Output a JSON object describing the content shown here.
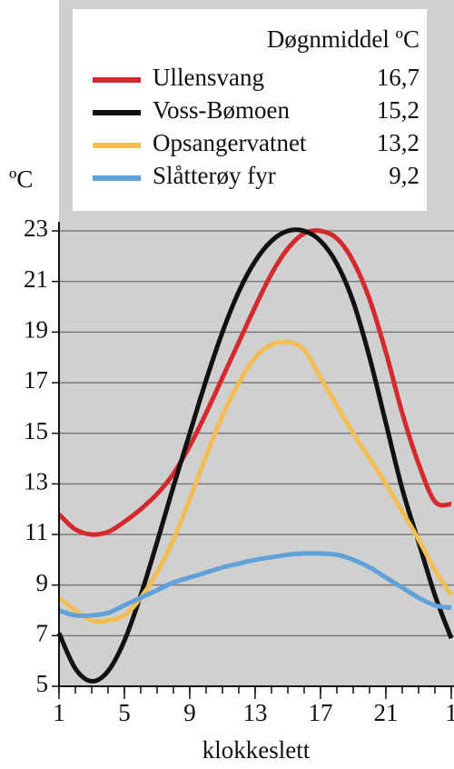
{
  "chart_data": {
    "type": "line",
    "y_label": "ºC",
    "x_label": "klokkeslett",
    "legend_title": "Døgnmiddel ºC",
    "x": [
      1,
      2,
      3,
      4,
      5,
      6,
      7,
      8,
      9,
      10,
      11,
      12,
      13,
      14,
      15,
      16,
      17,
      18,
      19,
      20,
      21,
      22,
      23,
      24,
      25
    ],
    "xlim": [
      1,
      25
    ],
    "xticks": [
      1,
      5,
      9,
      13,
      17,
      21,
      {
        "value": 25,
        "label": "1"
      }
    ],
    "ylim": [
      5,
      23
    ],
    "yticks": [
      5,
      7,
      9,
      11,
      13,
      15,
      17,
      19,
      21,
      23
    ],
    "grid": true,
    "series": [
      {
        "name": "Ullensvang",
        "mean": {
          "value": 16.7,
          "label": "16,7"
        },
        "color": "#d42a2e",
        "values": [
          11.8,
          11.2,
          11.0,
          11.1,
          11.5,
          12.0,
          12.6,
          13.4,
          14.5,
          15.8,
          17.2,
          18.6,
          20.0,
          21.3,
          22.3,
          22.9,
          23.0,
          22.7,
          21.8,
          20.3,
          18.2,
          15.8,
          13.8,
          12.3,
          12.2
        ]
      },
      {
        "name": "Voss-Bømoen",
        "mean": {
          "value": 15.2,
          "label": "15,2"
        },
        "color": "#111111",
        "values": [
          7.1,
          5.7,
          5.2,
          5.6,
          6.8,
          8.6,
          10.7,
          12.9,
          15.0,
          17.1,
          19.0,
          20.6,
          21.8,
          22.6,
          23.0,
          23.0,
          22.6,
          21.7,
          20.2,
          18.0,
          15.4,
          12.8,
          10.7,
          8.6,
          6.9
        ]
      },
      {
        "name": "Opsangervatnet",
        "mean": {
          "value": 13.2,
          "label": "13,2"
        },
        "color": "#f2bd55",
        "values": [
          8.5,
          8.0,
          7.6,
          7.6,
          7.8,
          8.5,
          9.5,
          10.8,
          12.4,
          14.1,
          15.7,
          17.0,
          18.0,
          18.5,
          18.6,
          18.3,
          17.2,
          16.1,
          15.0,
          14.0,
          13.0,
          11.9,
          10.8,
          9.6,
          8.6
        ]
      },
      {
        "name": "Slåtterøy fyr",
        "mean": {
          "value": 9.2,
          "label": "9,2"
        },
        "color": "#5fa1d8",
        "values": [
          8.0,
          7.8,
          7.8,
          7.9,
          8.2,
          8.5,
          8.8,
          9.1,
          9.3,
          9.5,
          9.7,
          9.85,
          10.0,
          10.1,
          10.2,
          10.25,
          10.25,
          10.2,
          10.0,
          9.7,
          9.3,
          8.9,
          8.5,
          8.2,
          8.1
        ]
      }
    ]
  }
}
